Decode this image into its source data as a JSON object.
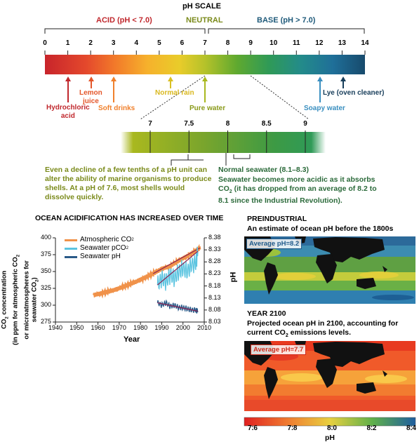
{
  "scale": {
    "title": "pH SCALE",
    "acid_label": "ACID (pH < 7.0)",
    "neutral_label": "NEUTRAL",
    "base_label": "BASE (pH > 7.0)",
    "ticks": [
      "0",
      "1",
      "2",
      "3",
      "4",
      "5",
      "6",
      "7",
      "8",
      "9",
      "10",
      "11",
      "12",
      "13",
      "14"
    ],
    "colors": {
      "acid": "#c0282d",
      "neutral": "#7a8a1a",
      "base": "#1f5a7a"
    }
  },
  "substances": {
    "hydrochloric_acid": "Hydrochloric\nacid",
    "lemon_juice": "Lemon\njuice",
    "soft_drinks": "Soft drinks",
    "normal_rain": "Normal rain",
    "pure_water": "Pure water",
    "soapy_water": "Soapy water",
    "lye": "Lye (oven cleaner)"
  },
  "zoom": {
    "ticks": [
      "7",
      "7.5",
      "8",
      "8.5",
      "9"
    ],
    "left_note": "Even a decline of a few tenths of a pH unit can alter the ability of marine organisms to produce shells. At a  pH of 7.6, most shells would dissolve quickly.",
    "right_title": "Normal seawater (8.1–8.3)",
    "right_note_a": "Seawater becomes more acidic as it absorbs",
    "right_note_b": "CO",
    "right_note_sub": "2",
    "right_note_c": " (it has dropped from an average of 8.2 to 8.1 since the Industrial Revolution)."
  },
  "chart_data": {
    "type": "line",
    "title": "OCEAN ACIDIFICATION HAS INCREASED OVER TIME",
    "xlabel": "Year",
    "ylabel_left_a": "CO",
    "ylabel_left_sub": "2",
    "ylabel_left_b": " concentration",
    "ylabel_left_2": "(in ppm for atmospheric CO",
    "ylabel_left_2_sub": "2",
    "ylabel_left_3": "or microatmospheres for",
    "ylabel_left_4": "seawater CO",
    "ylabel_left_4_sub": "2",
    "ylabel_left_4_end": ")",
    "ylabel_right": "pH",
    "xlim": [
      1940,
      2010
    ],
    "ylim_left": [
      275,
      400
    ],
    "ylim_right": [
      8.03,
      8.38
    ],
    "x_ticks": [
      "1940",
      "1950",
      "1960",
      "1970",
      "1980",
      "1990",
      "2000",
      "2010"
    ],
    "y_left_ticks": [
      "275",
      "300",
      "325",
      "350",
      "375",
      "400"
    ],
    "y_right_ticks": [
      "8.03",
      "8.08",
      "8.13",
      "8.18",
      "8.23",
      "8.28",
      "8.33",
      "8.38"
    ],
    "legend": [
      {
        "name": "Atmospheric CO",
        "sub": "2",
        "color": "#f0924a"
      },
      {
        "name": "Seawater pCO",
        "sub": "2",
        "color": "#5bc4e0"
      },
      {
        "name": "Seawater pH",
        "sub": "",
        "color": "#2a5a88"
      }
    ],
    "series": [
      {
        "name": "Atmospheric CO2",
        "axis": "left",
        "x": [
          1958,
          1962,
          1966,
          1970,
          1974,
          1978,
          1982,
          1986,
          1990,
          1994,
          1998,
          2002,
          2006,
          2008
        ],
        "values": [
          315,
          318,
          321,
          325,
          330,
          335,
          341,
          347,
          354,
          358,
          366,
          373,
          381,
          385
        ]
      },
      {
        "name": "Seawater pCO2",
        "axis": "left",
        "x": [
          1988,
          1990,
          1992,
          1994,
          1996,
          1998,
          2000,
          2002,
          2004,
          2006,
          2007
        ],
        "values": [
          330,
          340,
          335,
          345,
          340,
          350,
          355,
          350,
          360,
          362,
          380
        ]
      },
      {
        "name": "Seawater pH",
        "axis": "right",
        "x": [
          1988,
          1990,
          1992,
          1994,
          1996,
          1998,
          2000,
          2002,
          2004,
          2006,
          2007
        ],
        "values": [
          8.11,
          8.1,
          8.11,
          8.095,
          8.1,
          8.09,
          8.09,
          8.085,
          8.08,
          8.08,
          8.075
        ]
      }
    ],
    "trend_color": "#8b2050"
  },
  "maps": {
    "pre_title": "PREINDUSTRIAL",
    "pre_subtitle": "An estimate of ocean pH before the 1800s",
    "pre_avg": "Average pH=8.2",
    "future_title": "YEAR 2100",
    "future_subtitle_a": "Projected ocean pH in  2100, accounting for",
    "future_subtitle_b": "current CO",
    "future_subtitle_sub": "2",
    "future_subtitle_c": " emissions levels.",
    "future_avg": "Average pH=7.7",
    "colorbar_ticks": [
      "7.6",
      "7.8",
      "8.0",
      "8.2",
      "8.4"
    ],
    "colorbar_label": "pH"
  }
}
